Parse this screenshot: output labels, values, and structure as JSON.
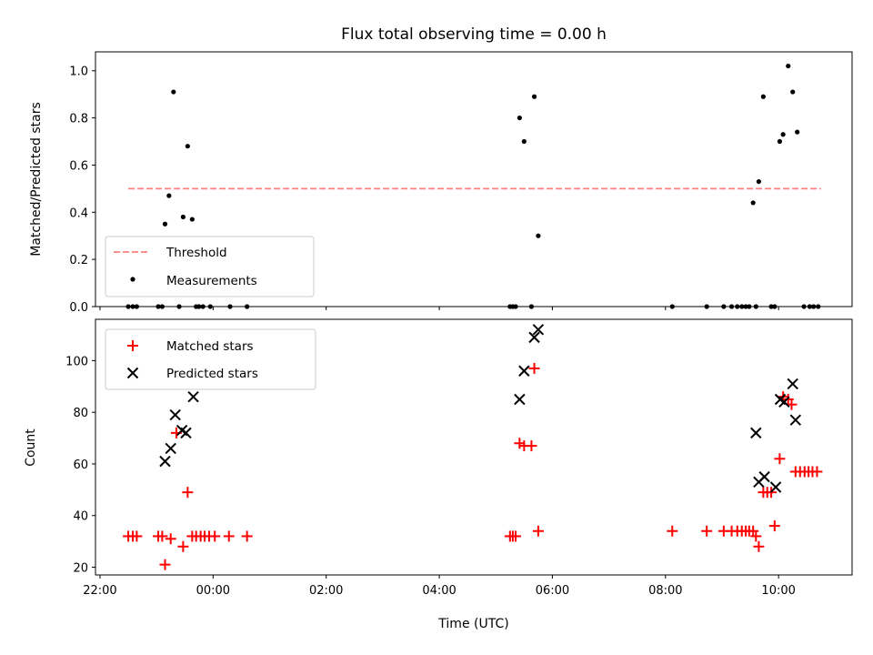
{
  "chart_data": [
    {
      "type": "scatter",
      "title": "Flux total observing time = 0.00 h",
      "xlabel": "",
      "ylabel": "Matched/Predicted stars",
      "ylim": [
        0,
        1.08
      ],
      "yticks": [
        "0.0",
        "0.2",
        "0.4",
        "0.6",
        "0.8",
        "1.0"
      ],
      "ytick_values": [
        0,
        0.2,
        0.4,
        0.6,
        0.8,
        1.0
      ],
      "grid": false,
      "legend_position": "lower-left",
      "threshold": {
        "name": "Threshold",
        "value": 0.5,
        "x_start": -1.5,
        "x_end": 10.75,
        "color": "#ff7f7f"
      },
      "series": [
        {
          "name": "Measurements",
          "color": "#000000",
          "x": [
            -1.5,
            -1.42,
            -1.35,
            -0.97,
            -0.9,
            -0.85,
            -0.78,
            -0.7,
            -0.6,
            -0.53,
            -0.45,
            -0.37,
            -0.3,
            -0.25,
            -0.18,
            -0.05,
            0.3,
            0.6,
            5.25,
            5.3,
            5.35,
            5.42,
            5.5,
            5.63,
            5.68,
            5.75,
            8.12,
            8.73,
            9.03,
            9.17,
            9.27,
            9.35,
            9.42,
            9.48,
            9.55,
            9.6,
            9.65,
            9.73,
            9.87,
            9.93,
            10.02,
            10.08,
            10.17,
            10.25,
            10.33,
            10.45,
            10.55,
            10.62,
            10.7
          ],
          "y": [
            0,
            0,
            0,
            0,
            0,
            0.35,
            0.47,
            0.91,
            0,
            0.38,
            0.68,
            0.37,
            0,
            0,
            0,
            0,
            0,
            0,
            0,
            0,
            0,
            0.8,
            0.7,
            0,
            0.89,
            0.3,
            0,
            0,
            0,
            0,
            0,
            0,
            0,
            0,
            0.44,
            0,
            0.53,
            0.89,
            0,
            0,
            0.7,
            0.73,
            1.02,
            0.91,
            0.74,
            0,
            0,
            0,
            0
          ]
        }
      ]
    },
    {
      "type": "scatter",
      "title": "",
      "xlabel": "Time (UTC)",
      "ylabel": "Count",
      "ylim": [
        17,
        116
      ],
      "yticks": [
        "20",
        "40",
        "60",
        "80",
        "100"
      ],
      "ytick_values": [
        20,
        40,
        60,
        80,
        100
      ],
      "xlim": [
        -2.08,
        11.3
      ],
      "xticks": [
        "22:00",
        "00:00",
        "02:00",
        "04:00",
        "06:00",
        "08:00",
        "10:00"
      ],
      "xtick_values": [
        -2,
        0,
        2,
        4,
        6,
        8,
        10
      ],
      "grid": false,
      "legend_position": "upper-left",
      "series": [
        {
          "name": "Matched stars",
          "color": "#ff0000",
          "marker": "+",
          "x": [
            -1.5,
            -1.42,
            -1.35,
            -0.97,
            -0.9,
            -0.85,
            -0.75,
            -0.65,
            -0.53,
            -0.45,
            -0.37,
            -0.3,
            -0.22,
            -0.15,
            -0.07,
            0.03,
            0.28,
            0.6,
            5.25,
            5.3,
            5.35,
            5.42,
            5.5,
            5.63,
            5.68,
            5.75,
            8.12,
            8.73,
            9.03,
            9.17,
            9.27,
            9.35,
            9.42,
            9.48,
            9.55,
            9.6,
            9.65,
            9.73,
            9.8,
            9.87,
            9.93,
            10.02,
            10.08,
            10.17,
            10.23,
            10.3,
            10.38,
            10.46,
            10.53,
            10.6,
            10.68
          ],
          "y": [
            32,
            32,
            32,
            32,
            32,
            21,
            31,
            72,
            28,
            49,
            32,
            32,
            32,
            32,
            32,
            32,
            32,
            32,
            32,
            32,
            32,
            68,
            67,
            67,
            97,
            34,
            34,
            34,
            34,
            34,
            34,
            34,
            34,
            34,
            34,
            32,
            28,
            49,
            49,
            49,
            36,
            62,
            86,
            85,
            83,
            57,
            57,
            57,
            57,
            57,
            57
          ]
        },
        {
          "name": "Predicted stars",
          "color": "#000000",
          "marker": "x",
          "x": [
            -0.85,
            -0.75,
            -0.67,
            -0.55,
            -0.48,
            -0.35,
            5.42,
            5.5,
            5.68,
            5.75,
            9.6,
            9.65,
            9.75,
            9.95,
            10.03,
            10.1,
            10.25,
            10.3
          ],
          "y": [
            61,
            66,
            79,
            73,
            72,
            86,
            85,
            96,
            109,
            112,
            72,
            53,
            55,
            51,
            85,
            84,
            91,
            77
          ]
        }
      ]
    }
  ]
}
